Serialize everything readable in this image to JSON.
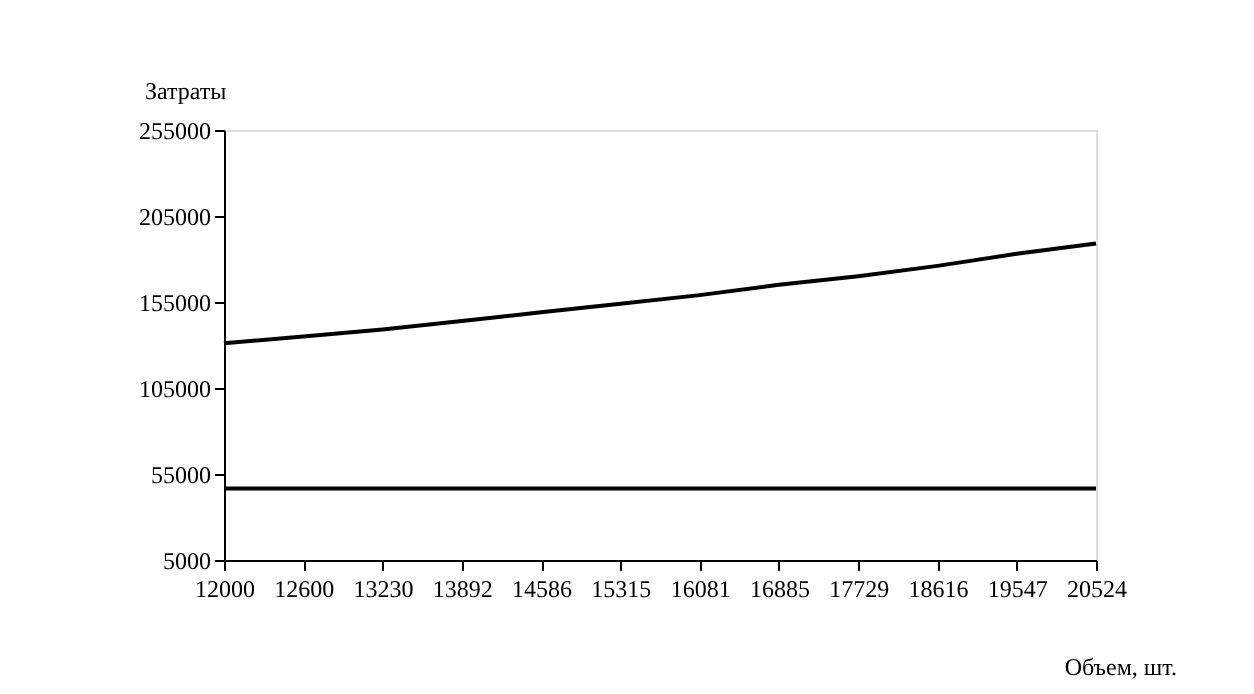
{
  "chart_data": {
    "type": "line",
    "xlabel": "Объем, шт.",
    "ylabel": "Затраты",
    "categories": [
      "12000",
      "12600",
      "13230",
      "13892",
      "14586",
      "15315",
      "16081",
      "16885",
      "17729",
      "18616",
      "19547",
      "20524"
    ],
    "series": [
      {
        "color": "#000000",
        "values": [
          131000,
          135000,
          139000,
          144000,
          149000,
          154000,
          159000,
          165000,
          170000,
          176000,
          183000,
          189000
        ]
      },
      {
        "color": "#000000",
        "values": [
          46500,
          46500,
          46500,
          46500,
          46500,
          46500,
          46500,
          46500,
          46500,
          46500,
          46500,
          46500
        ]
      }
    ],
    "ylim": [
      5000,
      255000
    ],
    "yticks": [
      5000,
      55000,
      105000,
      155000,
      205000,
      255000
    ],
    "grid": false,
    "marker": "none",
    "line_style": "solid"
  }
}
